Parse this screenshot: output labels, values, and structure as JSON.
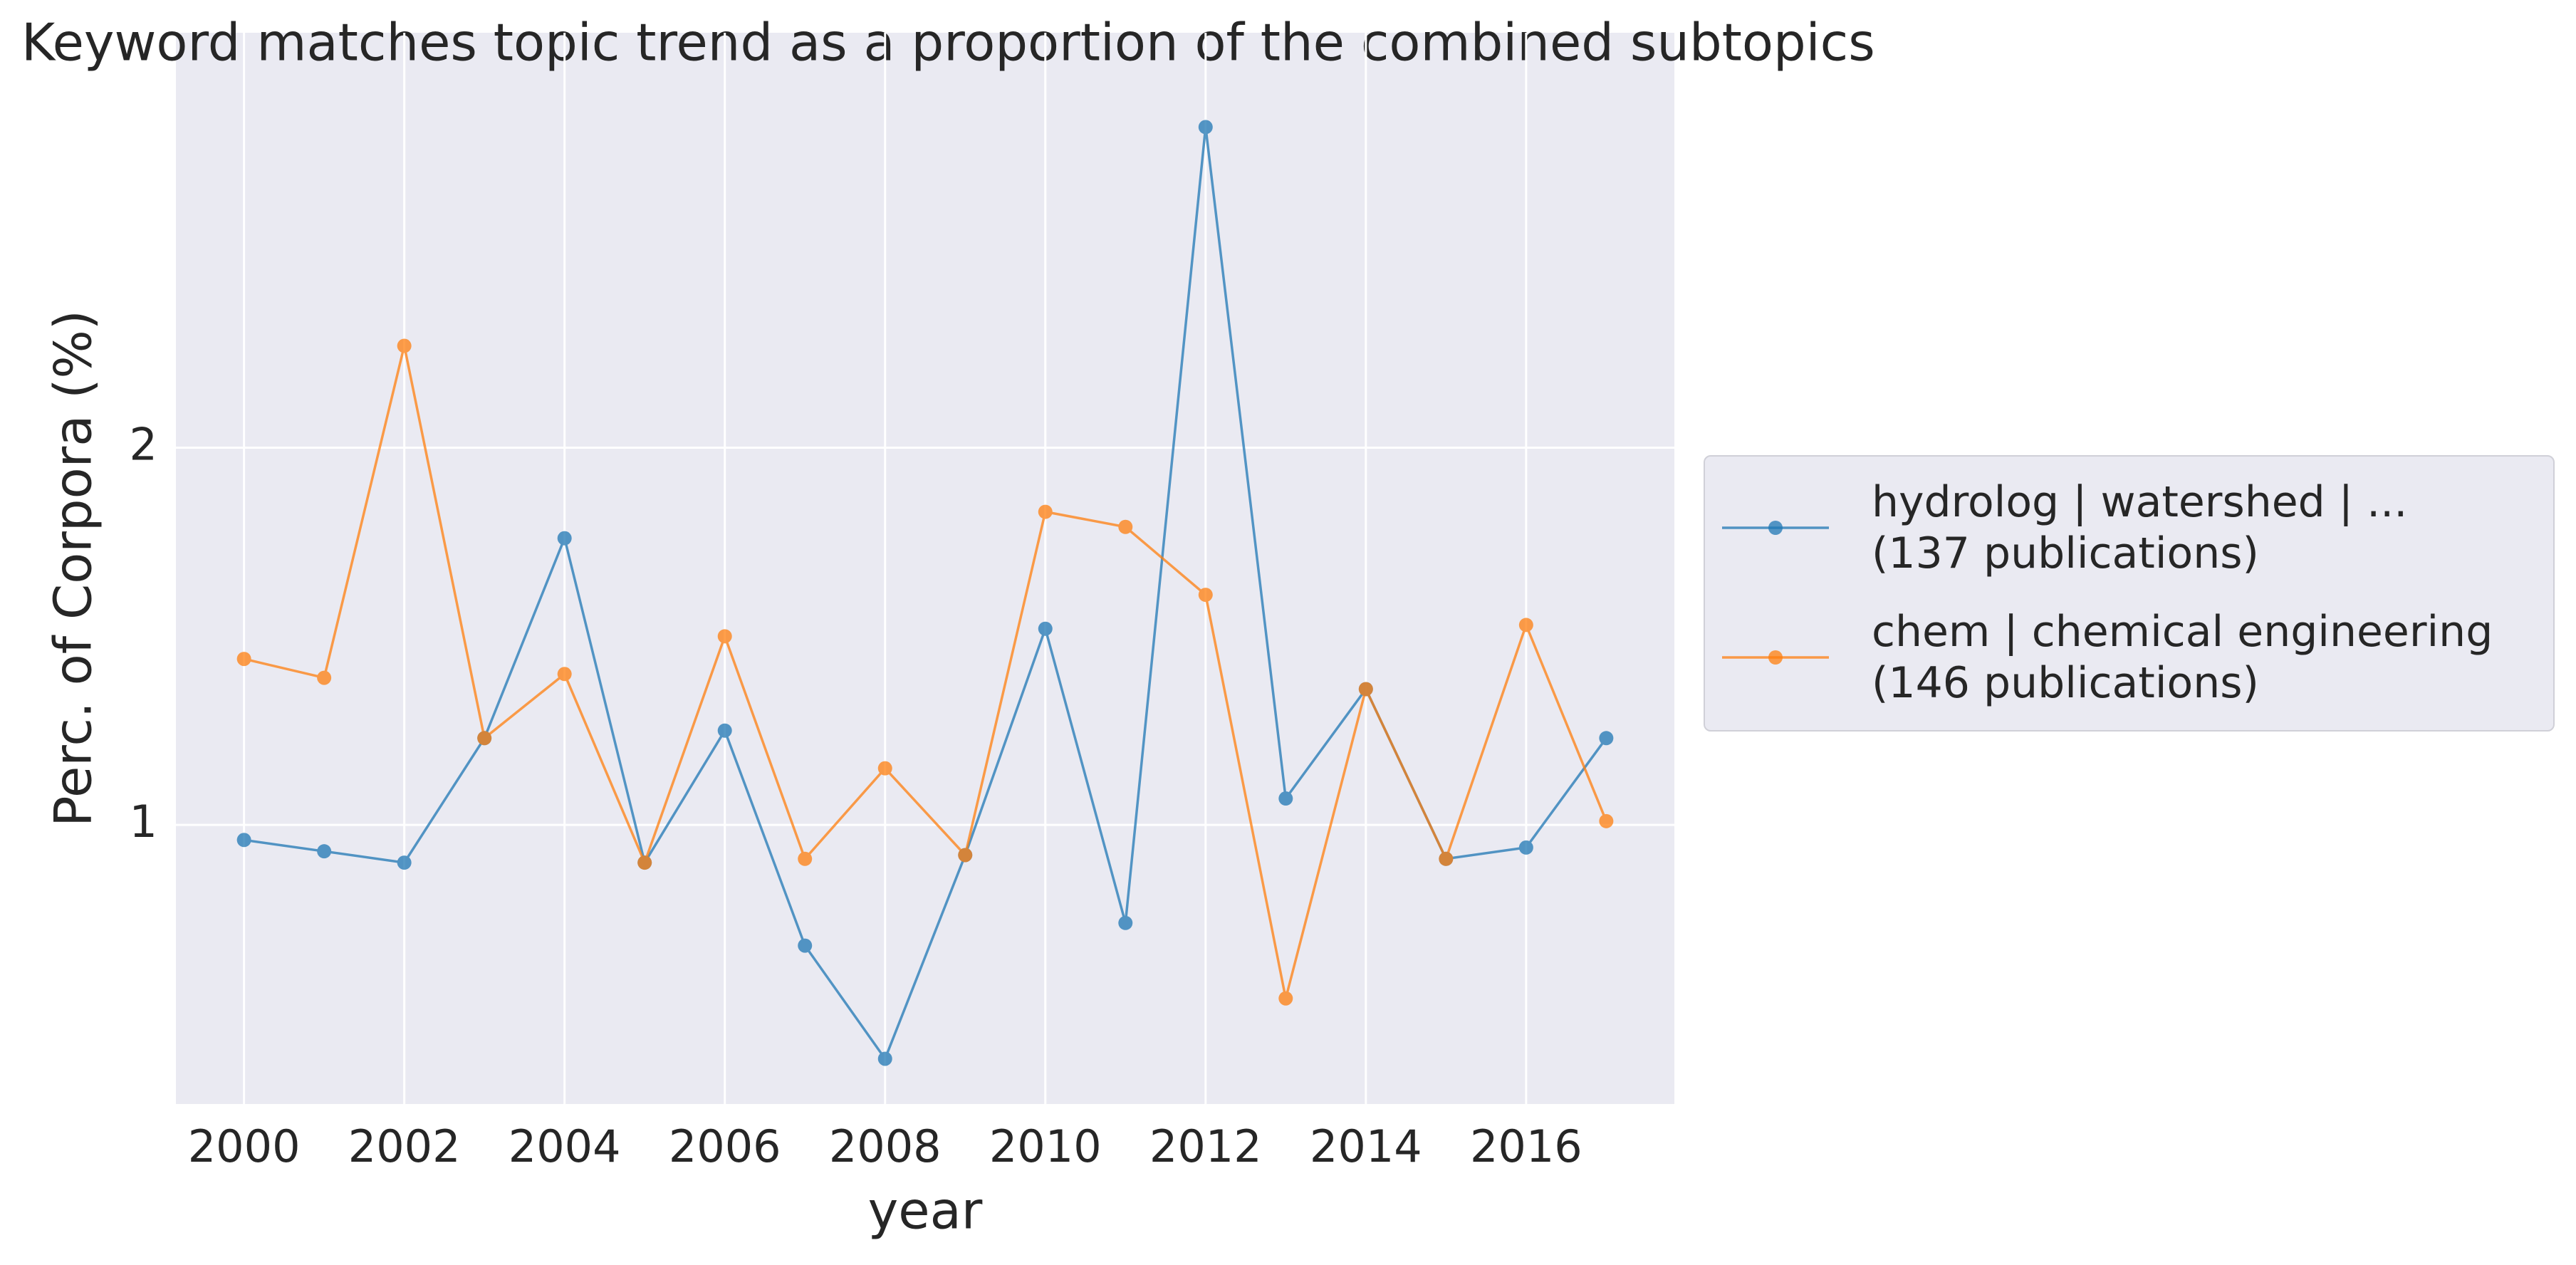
{
  "chart_data": {
    "type": "line",
    "title": "Keyword matches topic trend as a proportion of the combined subtopics",
    "x_label": "year",
    "y_label": "Perc. of Corpora (%)",
    "x": [
      2000,
      2001,
      2002,
      2003,
      2004,
      2005,
      2006,
      2007,
      2008,
      2009,
      2010,
      2011,
      2012,
      2013,
      2014,
      2015,
      2016,
      2017
    ],
    "series": [
      {
        "name": "hydrolog | watershed | ...\n(137 publications)",
        "color": "#1f77b4",
        "values": [
          0.96,
          0.93,
          0.9,
          1.23,
          1.76,
          0.9,
          1.25,
          0.68,
          0.38,
          0.92,
          1.52,
          0.74,
          2.85,
          1.07,
          1.36,
          0.91,
          0.94,
          1.23
        ]
      },
      {
        "name": "chem | chemical engineering\n(146 publications)",
        "color": "#ff7f0e",
        "values": [
          1.44,
          1.39,
          2.27,
          1.23,
          1.4,
          0.9,
          1.5,
          0.91,
          1.15,
          0.92,
          1.83,
          1.79,
          1.61,
          0.54,
          1.36,
          0.91,
          1.53,
          1.01
        ]
      }
    ],
    "xlim": [
      1999.15,
      2017.85
    ],
    "xticks": [
      2000,
      2002,
      2004,
      2006,
      2008,
      2010,
      2012,
      2014,
      2016
    ],
    "ylim": [
      0.26,
      3.1
    ],
    "yticks": [
      1,
      2
    ],
    "grid": true,
    "legend": "outside right"
  }
}
